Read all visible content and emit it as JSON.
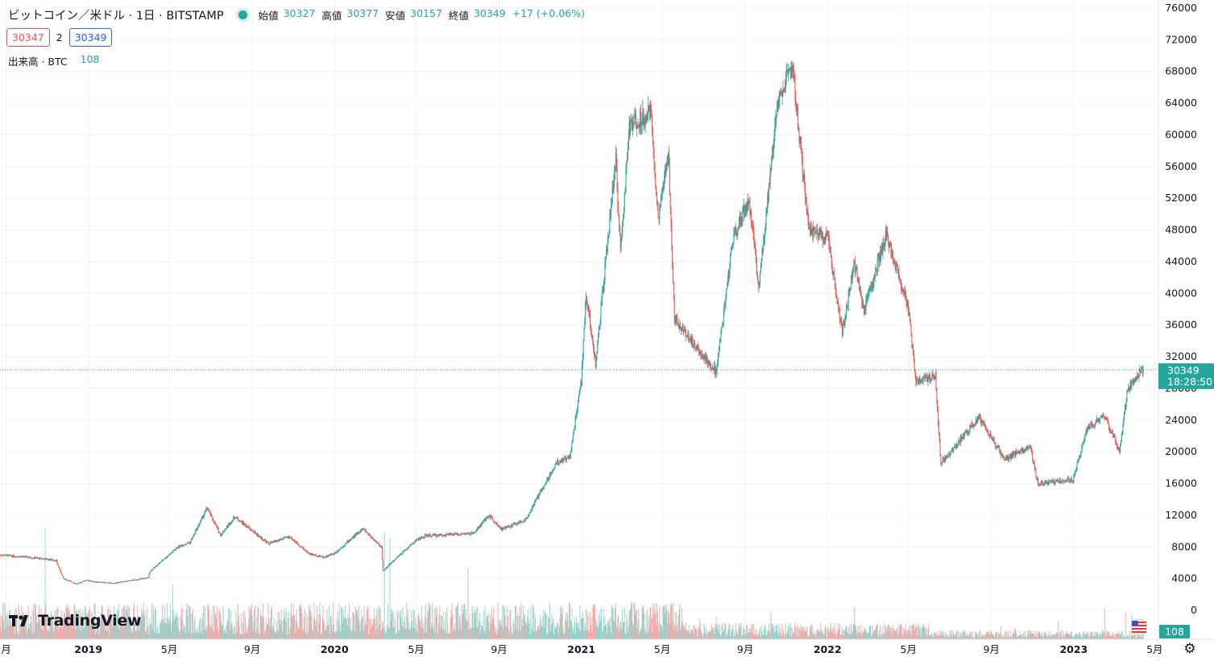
{
  "header": {
    "symbol": "ビットコイン／米ドル · 1日 · BITSTAMP",
    "open_label": "始値",
    "open": "30327",
    "high_label": "高値",
    "high": "30377",
    "low_label": "安値",
    "low": "30157",
    "close_label": "終値",
    "close": "30349",
    "change": "+17 (+0.06%)"
  },
  "bid": "30347",
  "spread": "2",
  "ask": "30349",
  "volume": {
    "label": "出来高 · BTC",
    "value": "108"
  },
  "price_label": {
    "value": "30349",
    "countdown": "18:28:50"
  },
  "volume_label": "108",
  "brand": "TradingView",
  "colors": {
    "up": "#26a69a",
    "down": "#ef5350",
    "accent": "#2962ff"
  },
  "chart_data": {
    "type": "candlestick",
    "title": "ビットコイン／米ドル · 1日 · BITSTAMP",
    "ylim": [
      0,
      76000
    ],
    "y_ticks": [
      0,
      4000,
      8000,
      12000,
      16000,
      20000,
      24000,
      28000,
      32000,
      36000,
      40000,
      44000,
      48000,
      52000,
      56000,
      60000,
      64000,
      68000,
      72000,
      76000
    ],
    "x_start": "2018-08-23",
    "x_end": "2023-05-03",
    "x_ticks": [
      {
        "label": "月",
        "date": "2018-09-01",
        "bold": false
      },
      {
        "label": "2019",
        "date": "2019-01-01",
        "bold": true
      },
      {
        "label": "5月",
        "date": "2019-05-01",
        "bold": false
      },
      {
        "label": "9月",
        "date": "2019-09-01",
        "bold": false
      },
      {
        "label": "2020",
        "date": "2020-01-01",
        "bold": true
      },
      {
        "label": "5月",
        "date": "2020-05-01",
        "bold": false
      },
      {
        "label": "9月",
        "date": "2020-09-01",
        "bold": false
      },
      {
        "label": "2021",
        "date": "2021-01-01",
        "bold": true
      },
      {
        "label": "5月",
        "date": "2021-05-01",
        "bold": false
      },
      {
        "label": "9月",
        "date": "2021-09-01",
        "bold": false
      },
      {
        "label": "2022",
        "date": "2022-01-01",
        "bold": true
      },
      {
        "label": "5月",
        "date": "2022-05-01",
        "bold": false
      },
      {
        "label": "9月",
        "date": "2022-09-01",
        "bold": false
      },
      {
        "label": "2023",
        "date": "2023-01-01",
        "bold": true
      },
      {
        "label": "5月",
        "date": "2023-05-01",
        "bold": false
      }
    ],
    "price_path": [
      [
        "2018-08-23",
        7000
      ],
      [
        "2018-10-15",
        6600
      ],
      [
        "2018-11-14",
        6300
      ],
      [
        "2018-11-25",
        4000
      ],
      [
        "2018-12-15",
        3300
      ],
      [
        "2018-12-28",
        3800
      ],
      [
        "2019-01-10",
        3600
      ],
      [
        "2019-02-07",
        3400
      ],
      [
        "2019-03-31",
        4100
      ],
      [
        "2019-04-02",
        4900
      ],
      [
        "2019-05-14",
        8000
      ],
      [
        "2019-06-01",
        8600
      ],
      [
        "2019-06-26",
        12900
      ],
      [
        "2019-07-16",
        9500
      ],
      [
        "2019-08-06",
        11800
      ],
      [
        "2019-09-25",
        8400
      ],
      [
        "2019-10-26",
        9300
      ],
      [
        "2019-11-25",
        7100
      ],
      [
        "2019-12-17",
        6700
      ],
      [
        "2020-01-01",
        7200
      ],
      [
        "2020-02-12",
        10300
      ],
      [
        "2020-03-11",
        7900
      ],
      [
        "2020-03-13",
        5000
      ],
      [
        "2020-04-30",
        8800
      ],
      [
        "2020-05-15",
        9400
      ],
      [
        "2020-07-25",
        9700
      ],
      [
        "2020-08-17",
        12000
      ],
      [
        "2020-09-05",
        10200
      ],
      [
        "2020-10-10",
        11400
      ],
      [
        "2020-11-25",
        18600
      ],
      [
        "2020-12-15",
        19400
      ],
      [
        "2021-01-01",
        29000
      ],
      [
        "2021-01-08",
        40000
      ],
      [
        "2021-01-22",
        31000
      ],
      [
        "2021-02-21",
        57000
      ],
      [
        "2021-02-28",
        45000
      ],
      [
        "2021-03-13",
        61000
      ],
      [
        "2021-04-14",
        63000
      ],
      [
        "2021-04-25",
        49000
      ],
      [
        "2021-05-10",
        58000
      ],
      [
        "2021-05-19",
        37000
      ],
      [
        "2021-06-22",
        33000
      ],
      [
        "2021-07-20",
        30000
      ],
      [
        "2021-08-14",
        47000
      ],
      [
        "2021-09-06",
        52000
      ],
      [
        "2021-09-21",
        41000
      ],
      [
        "2021-10-20",
        65000
      ],
      [
        "2021-11-10",
        68500
      ],
      [
        "2021-12-04",
        48000
      ],
      [
        "2022-01-01",
        47000
      ],
      [
        "2022-01-23",
        35000
      ],
      [
        "2022-02-10",
        44000
      ],
      [
        "2022-02-24",
        37500
      ],
      [
        "2022-03-29",
        47500
      ],
      [
        "2022-04-30",
        38500
      ],
      [
        "2022-05-12",
        29000
      ],
      [
        "2022-06-10",
        29500
      ],
      [
        "2022-06-18",
        18500
      ],
      [
        "2022-08-14",
        24400
      ],
      [
        "2022-09-20",
        19000
      ],
      [
        "2022-10-28",
        20800
      ],
      [
        "2022-11-09",
        16000
      ],
      [
        "2022-12-31",
        16500
      ],
      [
        "2023-01-21",
        23000
      ],
      [
        "2023-02-16",
        24500
      ],
      [
        "2023-03-10",
        20000
      ],
      [
        "2023-03-22",
        28000
      ],
      [
        "2023-04-14",
        30500
      ]
    ],
    "last_price": 30349
  }
}
